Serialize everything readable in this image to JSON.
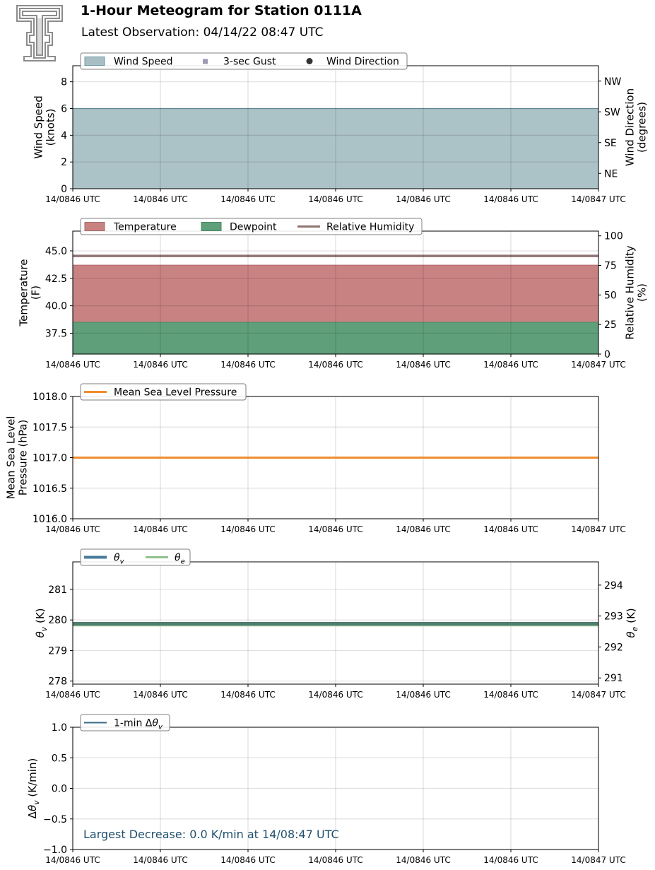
{
  "header": {
    "title": "1-Hour Meteogram for Station 0111A",
    "subtitle": "Latest Observation: 04/14/22 08:47 UTC"
  },
  "chart_data": [
    {
      "id": "wind",
      "type": "area",
      "x_tick_labels": [
        "14/0846 UTC",
        "14/0846 UTC",
        "14/0846 UTC",
        "14/0846 UTC",
        "14/0846 UTC",
        "14/0846 UTC",
        "14/0847 UTC"
      ],
      "ylabel": "Wind Speed\n(knots)",
      "ylim": [
        0,
        9.2
      ],
      "yticks": [
        0,
        2,
        4,
        6,
        8
      ],
      "ylabel_right": "Wind Direction\n(degrees)",
      "y2_ticks": [
        {
          "value": 45,
          "label": "NE"
        },
        {
          "value": 135,
          "label": "SE"
        },
        {
          "value": 225,
          "label": "SW"
        },
        {
          "value": 315,
          "label": "NW"
        }
      ],
      "y2lim": [
        0,
        360
      ],
      "legend": [
        "Wind Speed",
        "3-sec Gust",
        "Wind Direction"
      ],
      "series": [
        {
          "name": "Wind Speed",
          "values": [
            6.0,
            6.0
          ],
          "color": "#a7bfc4"
        }
      ],
      "grid": true
    },
    {
      "id": "temp",
      "type": "area",
      "x_tick_labels": [
        "14/0846 UTC",
        "14/0846 UTC",
        "14/0846 UTC",
        "14/0846 UTC",
        "14/0846 UTC",
        "14/0846 UTC",
        "14/0847 UTC"
      ],
      "ylabel": "Temperature\n(F)",
      "ylim": [
        35.6,
        46.8
      ],
      "yticks": [
        37.5,
        40.0,
        42.5,
        45.0
      ],
      "ytick_labels": [
        "37.5",
        "40.0",
        "42.5",
        "45.0"
      ],
      "ylabel_right": "Relative Humidity\n(%)",
      "y2lim": [
        0,
        104
      ],
      "y2_ticks": [
        {
          "value": 0,
          "label": "0"
        },
        {
          "value": 25,
          "label": "25"
        },
        {
          "value": 50,
          "label": "50"
        },
        {
          "value": 75,
          "label": "75"
        },
        {
          "value": 100,
          "label": "100"
        }
      ],
      "legend": [
        "Temperature",
        "Dewpoint",
        "Relative Humidity"
      ],
      "series": [
        {
          "name": "Temperature",
          "values": [
            43.7,
            43.7
          ],
          "color": "#c98282"
        },
        {
          "name": "Dewpoint",
          "values": [
            38.5,
            38.5
          ],
          "color": "#5f9f7a"
        },
        {
          "name": "Relative Humidity",
          "values": [
            83,
            83
          ],
          "color": "#8f7474",
          "axis": "right"
        }
      ],
      "grid": true
    },
    {
      "id": "pressure",
      "type": "line",
      "x_tick_labels": [
        "14/0846 UTC",
        "14/0846 UTC",
        "14/0846 UTC",
        "14/0846 UTC",
        "14/0846 UTC",
        "14/0846 UTC",
        "14/0847 UTC"
      ],
      "ylabel": "Mean Sea Level\nPressure (hPa)",
      "ylim": [
        1016.0,
        1018.0
      ],
      "yticks": [
        1016.0,
        1016.5,
        1017.0,
        1017.5,
        1018.0
      ],
      "ytick_labels": [
        "1016.0",
        "1016.5",
        "1017.0",
        "1017.5",
        "1018.0"
      ],
      "legend": [
        "Mean Sea Level Pressure"
      ],
      "series": [
        {
          "name": "Mean Sea Level Pressure",
          "values": [
            1017.0,
            1017.0
          ],
          "color": "#f08c2c"
        }
      ],
      "grid": true
    },
    {
      "id": "theta",
      "type": "line",
      "x_tick_labels": [
        "14/0846 UTC",
        "14/0846 UTC",
        "14/0846 UTC",
        "14/0846 UTC",
        "14/0846 UTC",
        "14/0846 UTC",
        "14/0847 UTC"
      ],
      "ylabel": "θv (K)",
      "ylim": [
        277.9,
        281.9
      ],
      "yticks": [
        278,
        279,
        280,
        281
      ],
      "ylabel_right": "θe (K)",
      "y2lim": [
        290.8,
        294.75
      ],
      "y2_ticks": [
        {
          "value": 291,
          "label": "291"
        },
        {
          "value": 292,
          "label": "292"
        },
        {
          "value": 293,
          "label": "293"
        },
        {
          "value": 294,
          "label": "294"
        }
      ],
      "legend": [
        "θv",
        "θe"
      ],
      "series": [
        {
          "name": "θv",
          "values": [
            279.9,
            279.9
          ],
          "color": "#467b99"
        },
        {
          "name": "θe",
          "values": [
            292.7,
            292.7
          ],
          "color": "#8fc28f",
          "axis": "right"
        }
      ],
      "grid": true
    },
    {
      "id": "dtheta",
      "type": "line",
      "x_tick_labels": [
        "14/0846 UTC",
        "14/0846 UTC",
        "14/0846 UTC",
        "14/0846 UTC",
        "14/0846 UTC",
        "14/0846 UTC",
        "14/0847 UTC"
      ],
      "ylabel": "Δθv (K/min)",
      "ylim": [
        -1.0,
        1.0
      ],
      "yticks": [
        -1.0,
        -0.5,
        0.0,
        0.5,
        1.0
      ],
      "ytick_labels": [
        "−1.0",
        "−0.5",
        "0.0",
        "0.5",
        "1.0"
      ],
      "legend": [
        "1-min Δθv"
      ],
      "series": [
        {
          "name": "1-min Δθv",
          "values": [],
          "color": "#3c6a88"
        }
      ],
      "annotation": "Largest Decrease: 0.0 K/min at 14/08:47 UTC",
      "annotation_color": "#1f4f6e",
      "grid": true
    }
  ]
}
